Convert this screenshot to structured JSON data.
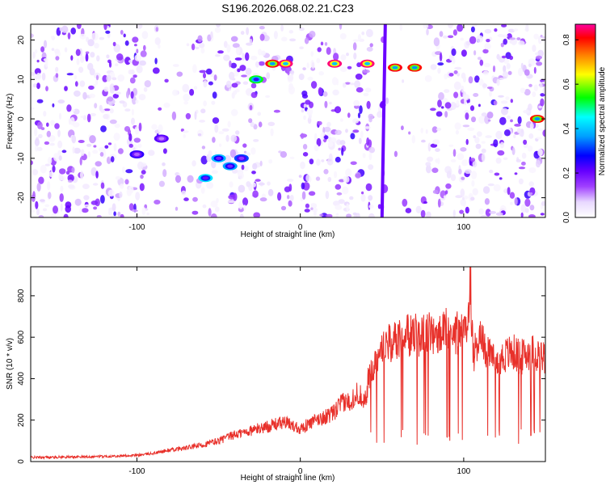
{
  "chart_data": [
    {
      "type": "heatmap",
      "title": "S196.2026.068.02.21.C23",
      "xlabel": "Height of straight line (km)",
      "ylabel": "Frequency (Hz)",
      "xlim": [
        -165,
        150
      ],
      "ylim": [
        -25,
        24
      ],
      "xticks": [
        "-100",
        "0",
        "100"
      ],
      "xtick_values": [
        -100,
        0,
        100
      ],
      "yticks": [
        "20",
        "10",
        "0",
        "-10",
        "-20"
      ],
      "ytick_values": [
        20,
        10,
        0,
        -10,
        -20
      ],
      "colorbar": {
        "label": "Normalized spectral amplitude",
        "range": [
          0.0,
          0.87
        ],
        "ticks": [
          "0.0",
          "0.2",
          "0.4",
          "0.6",
          "0.8"
        ],
        "tick_values": [
          0.0,
          0.2,
          0.4,
          0.6,
          0.8
        ],
        "colors": [
          "#ffffff",
          "#e8d8ff",
          "#a040ff",
          "#6600ff",
          "#0000ff",
          "#00a0ff",
          "#00ffff",
          "#00ff00",
          "#ffff00",
          "#ff8000",
          "#ff0000",
          "#ff00a0"
        ]
      },
      "hotspots": [
        {
          "x": -100,
          "y": -9,
          "value": 0.28
        },
        {
          "x": -85,
          "y": -5,
          "value": 0.25
        },
        {
          "x": -58,
          "y": -15,
          "value": 0.45
        },
        {
          "x": -50,
          "y": -10,
          "value": 0.42
        },
        {
          "x": -43,
          "y": -12,
          "value": 0.4
        },
        {
          "x": -36,
          "y": -10,
          "value": 0.35
        },
        {
          "x": -27,
          "y": 10,
          "value": 0.55
        },
        {
          "x": -17,
          "y": 14,
          "value": 0.8
        },
        {
          "x": -9,
          "y": 14,
          "value": 0.85
        },
        {
          "x": 21,
          "y": 14,
          "value": 0.85
        },
        {
          "x": 41,
          "y": 14,
          "value": 0.85
        },
        {
          "x": 58,
          "y": 13,
          "value": 0.8
        },
        {
          "x": 70,
          "y": 13,
          "value": 0.78
        },
        {
          "x": 145,
          "y": 0,
          "value": 0.78
        }
      ]
    },
    {
      "type": "line",
      "xlabel": "Height of straight line (km)",
      "ylabel": "SNR (10 * v/v)",
      "xlim": [
        -165,
        150
      ],
      "ylim": [
        0,
        940
      ],
      "xticks": [
        "-100",
        "0",
        "100"
      ],
      "xtick_values": [
        -100,
        0,
        100
      ],
      "yticks": [
        "0",
        "200",
        "400",
        "600",
        "800"
      ],
      "ytick_values": [
        0,
        200,
        400,
        600,
        800
      ],
      "series": [
        {
          "name": "SNR",
          "color": "#e8302a",
          "x": [
            -165,
            -140,
            -120,
            -100,
            -90,
            -80,
            -70,
            -60,
            -50,
            -40,
            -30,
            -20,
            -10,
            0,
            10,
            20,
            25,
            30,
            35,
            40,
            42,
            45,
            48,
            52,
            55,
            60,
            70,
            80,
            85,
            90,
            95,
            100,
            103,
            104,
            105,
            106,
            110,
            115,
            120,
            125,
            130,
            135,
            140,
            145,
            150
          ],
          "values": [
            20,
            22,
            25,
            30,
            40,
            55,
            65,
            80,
            100,
            130,
            150,
            170,
            190,
            160,
            200,
            230,
            280,
            290,
            330,
            300,
            410,
            450,
            540,
            590,
            560,
            600,
            610,
            620,
            600,
            640,
            620,
            610,
            700,
            940,
            650,
            520,
            600,
            520,
            480,
            510,
            530,
            500,
            530,
            520,
            500
          ]
        }
      ]
    }
  ]
}
